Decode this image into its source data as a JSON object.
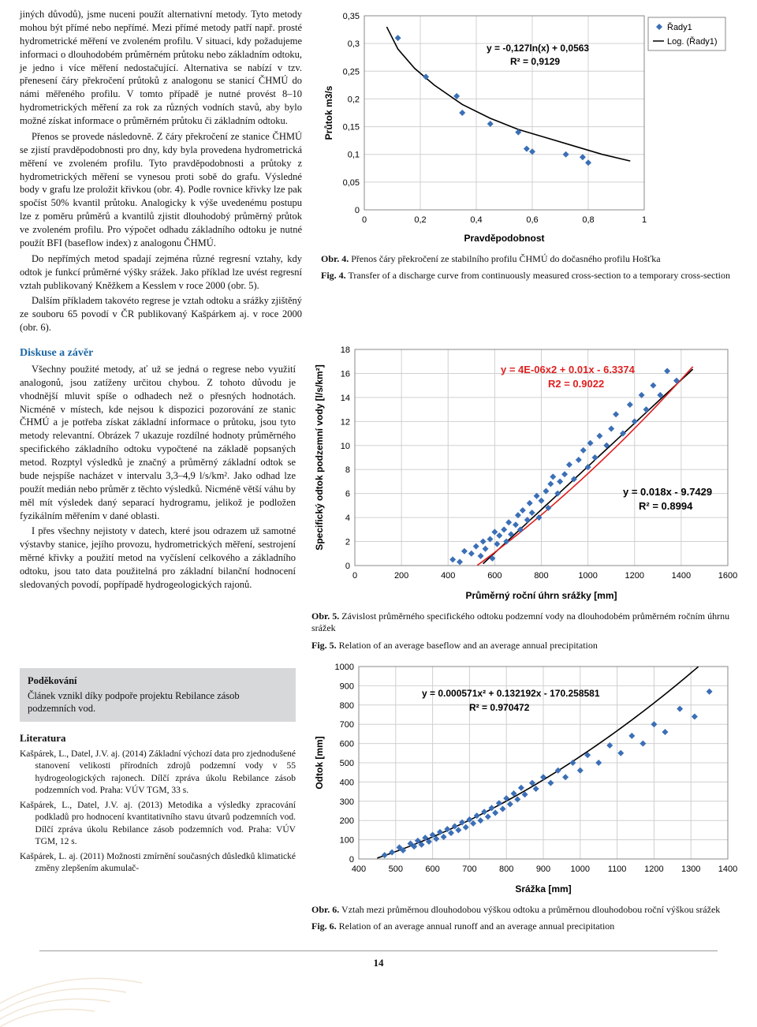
{
  "text": {
    "para1": "jiných důvodů), jsme nuceni použít alternativní metody. Tyto metody mohou být přímé nebo nepřímé. Mezi přímé metody patří např. prosté hydrometrické měření ve zvoleném profilu. V situaci, kdy požadujeme informaci o dlouhodobém průměrném průtoku nebo základním odtoku, je jedno i více měření nedostačující. Alternativa se nabízí v tzv. přenesení čáry překročení průtoků z analogonu se stanicí ČHMÚ do námi měřeného profilu. V tomto případě je nutné provést 8–10 hydrometrických měření za rok za různých vodních stavů, aby bylo možné získat informace o průměrném průtoku či základním odtoku.",
    "para2": "Přenos se provede následovně. Z čáry překročení ze stanice ČHMÚ se zjistí pravděpodobnosti pro dny, kdy byla provedena hydrometrická měření ve zvoleném profilu. Tyto pravděpodobnosti a průtoky z hydrometrických měření se vynesou proti sobě do grafu. Výsledné body v grafu lze proložit křivkou (obr. 4). Podle rovnice křivky lze pak spočíst 50% kvantil průtoku. Analogicky k výše uvedenému postupu lze z poměru průměrů a kvantilů zjistit dlouhodobý průměrný průtok ve zvoleném profilu. Pro výpočet odhadu základního odtoku je nutné použít BFI (baseflow index) z analogonu ČHMÚ.",
    "para3": "Do nepřímých metod spadají zejména různé regresní vztahy, kdy odtok je funkcí průměrné výšky srážek. Jako příklad lze uvést regresní vztah publikovaný Kněžkem a Kesslem v roce 2000 (obr. 5).",
    "para4": "Dalším příkladem takovéto regrese je vztah odtoku a srážky zjištěný ze souboru 65 povodí v ČR publikovaný Kašpárkem aj. v roce 2000 (obr. 6).",
    "discuss_title": "Diskuse a závěr",
    "discuss1": "Všechny použité metody, ať už se jedná o regrese nebo využití analogonů, jsou zatíženy určitou chybou. Z tohoto důvodu je vhodnější mluvit spíše o odhadech než o přesných hodnotách. Nicméně v místech, kde nejsou k dispozici pozorování ze stanic ČHMÚ a je potřeba získat základní informace o průtoku, jsou tyto metody relevantní. Obrázek 7 ukazuje rozdílné hodnoty průměrného specifického základního odtoku vypočtené na základě popsaných metod. Rozptyl výsledků je značný a průměrný základní odtok se bude nejspíše nacházet v intervalu 3,3–4,9 l/s/km². Jako odhad lze použít medián nebo průměr z těchto výsledků. Nicméně větší váhu by měl mít výsledek daný separací hydrogramu, jelikož je podložen fyzikálním měřením v dané oblasti.",
    "discuss2": "I přes všechny nejistoty v datech, které jsou odrazem už samotné výstavby stanice, jejího provozu, hydrometrických měření, sestrojení měrné křivky a použití metod na vyčíslení celkového a základního odtoku, jsou tato data použitelná pro základní bilanční hodnocení sledovaných povodí, popřípadě hydrogeologických rajonů.",
    "thanks_hdr": "Poděkování",
    "thanks_body": "Článek vznikl díky podpoře projektu Rebilance zásob podzemních vod.",
    "lit_title": "Literatura",
    "ref1": "Kašpárek, L., Datel, J.V. aj. (2014) Základní výchozí data pro zjednodušené stanovení velikosti přírodních zdrojů podzemní vody v 55 hydrogeologických rajonech. Dílčí zpráva úkolu Rebilance zásob podzemních vod. Praha: VÚV TGM, 33 s.",
    "ref2": "Kašpárek, L., Datel, J.V. aj. (2013) Metodika a výsledky zpracování podkladů pro hodnocení kvantitativního stavu útvarů podzemních vod. Dílčí zpráva úkolu Rebilance zásob podzemních vod. Praha: VÚV TGM, 12 s.",
    "ref3": "Kašpárek, L. aj. (2011) Možnosti zmírnění současných důsledků klimatické změny zlepšením akumulač-",
    "pagenum": "14"
  },
  "fig4": {
    "caption_cz": "Obr. 4. Přenos čáry překročení ze stabilního profilu ČHMÚ do dočasného profilu Hošťka",
    "caption_en": "Fig. 4. Transfer of a discharge curve from continuously measured cross-section to a temporary cross-section",
    "xlabel": "Pravděpodobnost",
    "ylabel": "Průtok m3/s",
    "legend_series": "Řady1",
    "legend_log": "Log. (Řady1)",
    "eq1": "y = -0,127ln(x) + 0,0563",
    "eq2": "R² = 0,9129",
    "xlim": [
      0,
      1
    ],
    "xtick_step": 0.2,
    "ylim": [
      0,
      0.35
    ],
    "ytick_step": 0.05,
    "point_color": "#3b6fb6",
    "line_color": "#000000",
    "grid_color": "#d0d0d0",
    "points": [
      [
        0.12,
        0.31
      ],
      [
        0.22,
        0.24
      ],
      [
        0.33,
        0.205
      ],
      [
        0.35,
        0.175
      ],
      [
        0.45,
        0.155
      ],
      [
        0.55,
        0.14
      ],
      [
        0.58,
        0.11
      ],
      [
        0.6,
        0.105
      ],
      [
        0.72,
        0.1
      ],
      [
        0.78,
        0.095
      ],
      [
        0.8,
        0.085
      ]
    ],
    "curve": [
      [
        0.08,
        0.33
      ],
      [
        0.12,
        0.29
      ],
      [
        0.18,
        0.255
      ],
      [
        0.25,
        0.225
      ],
      [
        0.35,
        0.19
      ],
      [
        0.45,
        0.165
      ],
      [
        0.55,
        0.145
      ],
      [
        0.65,
        0.13
      ],
      [
        0.75,
        0.115
      ],
      [
        0.85,
        0.1
      ],
      [
        0.95,
        0.088
      ]
    ]
  },
  "fig5": {
    "caption_cz": "Obr. 5. Závislost průměrného specifického odtoku podzemní vody na dlouhodobém průměrném ročním úhrnu srážek",
    "caption_en": "Fig. 5. Relation of an average baseflow and an average annual precipitation",
    "xlabel": "Průměrný roční úhrn srážky [mm]",
    "ylabel": "Specifický odtok podzemní vody [l/s/km²]",
    "eq_red1": "y = 4E-06x2 + 0.01x - 6.3374",
    "eq_red2": "R2 = 0.9022",
    "eq_black1": "y = 0.018x - 9.7429",
    "eq_black2": "R² = 0.8994",
    "xlim": [
      0,
      1600
    ],
    "xtick_step": 200,
    "ylim": [
      0,
      18
    ],
    "ytick_step": 2,
    "point_color": "#3b6fb6",
    "line_red": "#e02020",
    "line_black": "#000000",
    "grid_color": "#d0d0d0",
    "points": [
      [
        420,
        0.5
      ],
      [
        450,
        0.3
      ],
      [
        470,
        1.2
      ],
      [
        500,
        1.0
      ],
      [
        520,
        1.6
      ],
      [
        540,
        0.8
      ],
      [
        550,
        2.0
      ],
      [
        560,
        1.4
      ],
      [
        580,
        2.2
      ],
      [
        590,
        0.6
      ],
      [
        600,
        2.8
      ],
      [
        610,
        1.8
      ],
      [
        620,
        2.5
      ],
      [
        640,
        3.0
      ],
      [
        650,
        2.0
      ],
      [
        660,
        3.6
      ],
      [
        670,
        2.6
      ],
      [
        690,
        3.4
      ],
      [
        700,
        4.2
      ],
      [
        710,
        3.0
      ],
      [
        720,
        4.6
      ],
      [
        740,
        3.8
      ],
      [
        750,
        5.2
      ],
      [
        760,
        4.4
      ],
      [
        780,
        5.8
      ],
      [
        790,
        4.0
      ],
      [
        800,
        5.4
      ],
      [
        820,
        6.2
      ],
      [
        830,
        4.8
      ],
      [
        840,
        6.8
      ],
      [
        850,
        7.4
      ],
      [
        870,
        6.0
      ],
      [
        880,
        7.0
      ],
      [
        900,
        7.6
      ],
      [
        920,
        8.4
      ],
      [
        940,
        7.2
      ],
      [
        960,
        8.8
      ],
      [
        980,
        9.6
      ],
      [
        1000,
        8.2
      ],
      [
        1010,
        10.2
      ],
      [
        1030,
        9.0
      ],
      [
        1050,
        10.8
      ],
      [
        1080,
        10.0
      ],
      [
        1100,
        11.4
      ],
      [
        1120,
        12.6
      ],
      [
        1150,
        11.0
      ],
      [
        1180,
        13.4
      ],
      [
        1200,
        12.0
      ],
      [
        1230,
        14.2
      ],
      [
        1250,
        13.0
      ],
      [
        1280,
        15.0
      ],
      [
        1310,
        14.2
      ],
      [
        1340,
        16.2
      ],
      [
        1380,
        15.4
      ]
    ]
  },
  "fig6": {
    "caption_cz": "Obr. 6. Vztah mezi průměrnou dlouhodobou výškou odtoku a průměrnou dlouhodobou roční výškou srážek",
    "caption_en": "Fig. 6. Relation of an average annual runoff and an average annual precipitation",
    "xlabel": "Srážka [mm]",
    "ylabel": "Odtok [mm]",
    "eq1": "y = 0.000571x² + 0.132192x - 170.258581",
    "eq2": "R² = 0.970472",
    "xlim": [
      400,
      1400
    ],
    "xtick_step": 100,
    "ylim": [
      0,
      1000
    ],
    "ytick_step": 100,
    "point_color": "#3b6fb6",
    "line_color": "#000000",
    "grid_color": "#d0d0d0",
    "points": [
      [
        470,
        20
      ],
      [
        490,
        35
      ],
      [
        510,
        60
      ],
      [
        520,
        45
      ],
      [
        540,
        80
      ],
      [
        550,
        65
      ],
      [
        560,
        95
      ],
      [
        570,
        75
      ],
      [
        580,
        110
      ],
      [
        590,
        90
      ],
      [
        600,
        125
      ],
      [
        610,
        105
      ],
      [
        620,
        140
      ],
      [
        630,
        115
      ],
      [
        640,
        155
      ],
      [
        650,
        135
      ],
      [
        660,
        170
      ],
      [
        670,
        150
      ],
      [
        680,
        190
      ],
      [
        690,
        165
      ],
      [
        700,
        205
      ],
      [
        710,
        185
      ],
      [
        720,
        225
      ],
      [
        730,
        200
      ],
      [
        740,
        245
      ],
      [
        750,
        220
      ],
      [
        760,
        265
      ],
      [
        770,
        240
      ],
      [
        780,
        290
      ],
      [
        790,
        260
      ],
      [
        800,
        315
      ],
      [
        810,
        285
      ],
      [
        820,
        340
      ],
      [
        830,
        310
      ],
      [
        840,
        370
      ],
      [
        850,
        335
      ],
      [
        870,
        395
      ],
      [
        880,
        365
      ],
      [
        900,
        425
      ],
      [
        920,
        395
      ],
      [
        940,
        460
      ],
      [
        960,
        425
      ],
      [
        980,
        500
      ],
      [
        1000,
        460
      ],
      [
        1020,
        540
      ],
      [
        1050,
        500
      ],
      [
        1080,
        590
      ],
      [
        1110,
        550
      ],
      [
        1140,
        640
      ],
      [
        1170,
        600
      ],
      [
        1200,
        700
      ],
      [
        1230,
        660
      ],
      [
        1270,
        780
      ],
      [
        1310,
        740
      ],
      [
        1350,
        870
      ]
    ]
  }
}
